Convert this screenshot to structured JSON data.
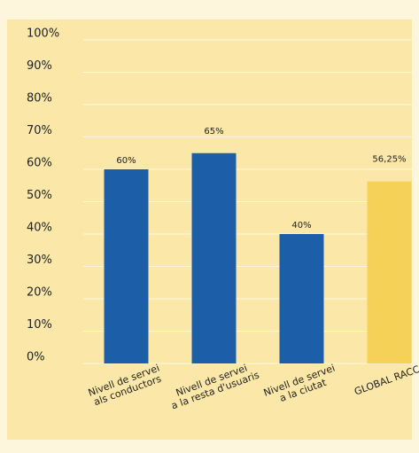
{
  "chart_data": {
    "type": "bar",
    "categories": [
      "Nivell de servei\nals conductors",
      "Nivell de servei\na la resta d'usuaris",
      "Nivell de servei\na la ciutat",
      "GLOBAL RACC"
    ],
    "values": [
      60,
      65,
      40,
      56.25
    ],
    "value_labels": [
      "60%",
      "65%",
      "40%",
      "56,25%"
    ],
    "colors": [
      "#1c5ea8",
      "#1c5ea8",
      "#1c5ea8",
      "#f6d158"
    ],
    "ylim": [
      0,
      100
    ],
    "yticks": [
      {
        "value": 0,
        "label": "0%"
      },
      {
        "value": 10,
        "label": "10%"
      },
      {
        "value": 20,
        "label": "20%"
      },
      {
        "value": 30,
        "label": "30%"
      },
      {
        "value": 40,
        "label": "40%"
      },
      {
        "value": 50,
        "label": "50%"
      },
      {
        "value": 60,
        "label": "60%"
      },
      {
        "value": 70,
        "label": "70%"
      },
      {
        "value": 80,
        "label": "80%"
      },
      {
        "value": 90,
        "label": "90%"
      },
      {
        "value": 100,
        "label": "100%"
      }
    ],
    "grid": true
  }
}
